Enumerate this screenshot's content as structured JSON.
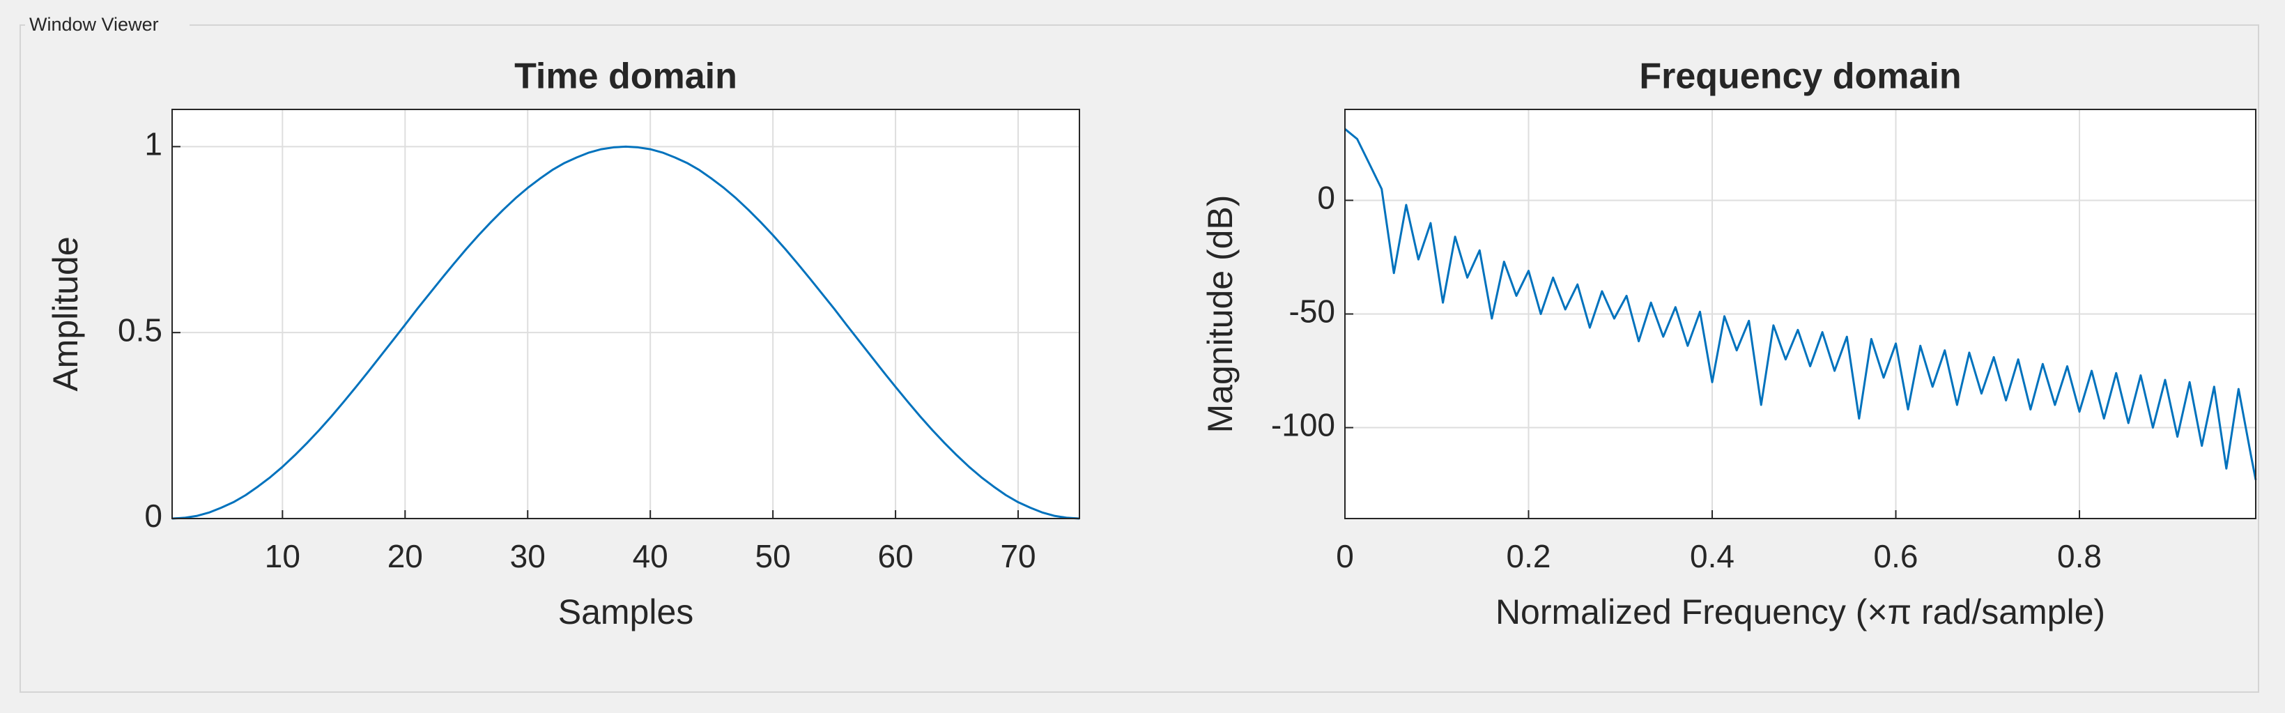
{
  "panel_title": "Window Viewer",
  "chart_data": [
    {
      "type": "line",
      "title": "Time domain",
      "x_label": "Samples",
      "y_label": "Amplitude",
      "xlim": [
        1,
        75
      ],
      "ylim": [
        0,
        1.1
      ],
      "xticks": [
        10,
        20,
        30,
        40,
        50,
        60,
        70
      ],
      "yticks": [
        0,
        0.5,
        1
      ],
      "grid": true,
      "series": [
        {
          "color": "#0072bd",
          "x": [
            1,
            2,
            3,
            4,
            5,
            6,
            7,
            8,
            9,
            10,
            11,
            12,
            13,
            14,
            15,
            16,
            17,
            18,
            19,
            20,
            21,
            22,
            23,
            24,
            25,
            26,
            27,
            28,
            29,
            30,
            31,
            32,
            33,
            34,
            35,
            36,
            37,
            38,
            39,
            40,
            41,
            42,
            43,
            44,
            45,
            46,
            47,
            48,
            49,
            50,
            51,
            52,
            53,
            54,
            55,
            56,
            57,
            58,
            59,
            60,
            61,
            62,
            63,
            64,
            65,
            66,
            67,
            68,
            69,
            70,
            71,
            72,
            73,
            74,
            75
          ],
          "values": [
            0,
            0.002,
            0.007,
            0.016,
            0.029,
            0.044,
            0.063,
            0.086,
            0.111,
            0.139,
            0.17,
            0.203,
            0.238,
            0.275,
            0.314,
            0.354,
            0.395,
            0.437,
            0.479,
            0.521,
            0.564,
            0.605,
            0.646,
            0.686,
            0.725,
            0.762,
            0.797,
            0.83,
            0.861,
            0.889,
            0.914,
            0.937,
            0.956,
            0.971,
            0.984,
            0.993,
            0.998,
            1,
            0.998,
            0.993,
            0.984,
            0.971,
            0.956,
            0.937,
            0.914,
            0.889,
            0.861,
            0.83,
            0.797,
            0.762,
            0.725,
            0.686,
            0.646,
            0.605,
            0.564,
            0.521,
            0.479,
            0.437,
            0.395,
            0.354,
            0.314,
            0.275,
            0.238,
            0.203,
            0.17,
            0.139,
            0.111,
            0.086,
            0.063,
            0.044,
            0.029,
            0.016,
            0.007,
            0.002,
            0
          ]
        }
      ]
    },
    {
      "type": "line",
      "title": "Frequency domain",
      "x_label": "Normalized Frequency  (×π rad/sample)",
      "y_label": "Magnitude (dB)",
      "xlim": [
        0,
        0.992
      ],
      "ylim": [
        -140,
        40
      ],
      "xticks": [
        0,
        0.2,
        0.4,
        0.6,
        0.8
      ],
      "yticks": [
        -100,
        -50,
        0
      ],
      "grid": true,
      "series": [
        {
          "color": "#0072bd",
          "x": [
            0,
            0.0133,
            0.0267,
            0.04,
            0.0533,
            0.0667,
            0.08,
            0.0933,
            0.1067,
            0.12,
            0.1333,
            0.1467,
            0.16,
            0.1733,
            0.1867,
            0.2,
            0.2133,
            0.2267,
            0.24,
            0.2533,
            0.2667,
            0.28,
            0.2933,
            0.3067,
            0.32,
            0.3333,
            0.3467,
            0.36,
            0.3733,
            0.3867,
            0.4,
            0.4133,
            0.4267,
            0.44,
            0.4533,
            0.4667,
            0.48,
            0.4933,
            0.5067,
            0.52,
            0.5333,
            0.5467,
            0.56,
            0.5733,
            0.5867,
            0.6,
            0.6133,
            0.6267,
            0.64,
            0.6533,
            0.6667,
            0.68,
            0.6933,
            0.7067,
            0.72,
            0.7333,
            0.7467,
            0.76,
            0.7733,
            0.7867,
            0.8,
            0.8133,
            0.8267,
            0.84,
            0.8533,
            0.8667,
            0.88,
            0.8933,
            0.9067,
            0.92,
            0.9333,
            0.9467,
            0.96,
            0.9733,
            0.9867,
            0.992
          ],
          "values": [
            31.4,
            27,
            16,
            5,
            -32,
            -2,
            -26,
            -10,
            -45,
            -16,
            -34,
            -22,
            -52,
            -27,
            -42,
            -31,
            -50,
            -34,
            -48,
            -37,
            -56,
            -40,
            -52,
            -42,
            -62,
            -45,
            -60,
            -47,
            -64,
            -49,
            -80,
            -51,
            -66,
            -53,
            -90,
            -55,
            -70,
            -57,
            -73,
            -58,
            -75,
            -60,
            -96,
            -61,
            -78,
            -63,
            -92,
            -64,
            -82,
            -66,
            -90,
            -67,
            -85,
            -69,
            -88,
            -70,
            -92,
            -72,
            -90,
            -73,
            -93,
            -75,
            -96,
            -76,
            -98,
            -77,
            -100,
            -79,
            -104,
            -80,
            -108,
            -82,
            -118,
            -83,
            -112,
            -123
          ]
        }
      ]
    }
  ]
}
